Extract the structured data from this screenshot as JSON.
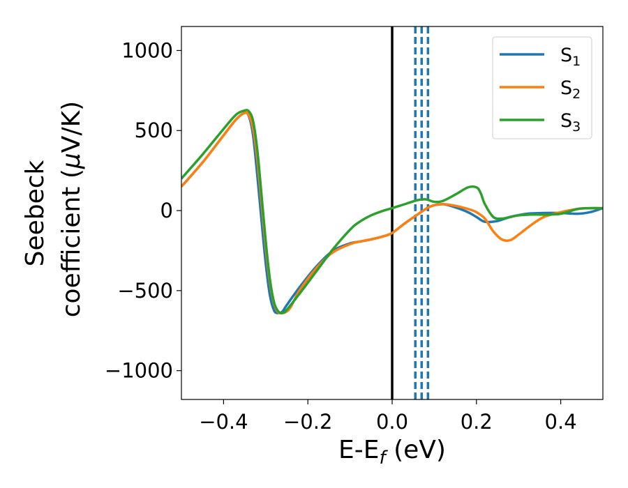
{
  "chart_data": {
    "type": "line",
    "title": "",
    "xlabel": "E-E",
    "xlabel_sub": "f",
    "xlabel_unit": " (eV)",
    "ylabel_line1": "Seebeck",
    "ylabel_line2": "coefficient  (",
    "ylabel_mu": "μ",
    "ylabel_unit": "V/K)",
    "xlim": [
      -0.5,
      0.5
    ],
    "ylim": [
      -1180,
      1150
    ],
    "xticks": [
      -0.4,
      -0.2,
      0.0,
      0.2,
      0.4
    ],
    "xtick_labels": [
      "−0.4",
      "−0.2",
      "0.0",
      "0.2",
      "0.4"
    ],
    "yticks": [
      -1000,
      -500,
      0,
      500,
      1000
    ],
    "ytick_labels": [
      "−1000",
      "−500",
      "0",
      "500",
      "1000"
    ],
    "grid": false,
    "legend_position": "top-right",
    "vertical_lines": [
      {
        "x": 0.0,
        "style": "solid",
        "color": "#000000"
      },
      {
        "x": 0.055,
        "style": "dashed",
        "color": "#1f77b4"
      },
      {
        "x": 0.07,
        "style": "dashed",
        "color": "#1f77b4"
      },
      {
        "x": 0.085,
        "style": "dashed",
        "color": "#1f77b4"
      }
    ],
    "series": [
      {
        "name": "S",
        "sub": "1",
        "color": "#1f77b4",
        "x": [
          -0.5,
          -0.45,
          -0.4,
          -0.37,
          -0.35,
          -0.34,
          -0.33,
          -0.32,
          -0.31,
          -0.3,
          -0.29,
          -0.28,
          -0.27,
          -0.26,
          -0.25,
          -0.22,
          -0.18,
          -0.14,
          -0.1,
          -0.08,
          -0.05,
          -0.02,
          0.0,
          0.03,
          0.06,
          0.09,
          0.12,
          0.15,
          0.18,
          0.2,
          0.22,
          0.25,
          0.28,
          0.32,
          0.36,
          0.4,
          0.44,
          0.47,
          0.5
        ],
        "y": [
          150,
          300,
          470,
          570,
          610,
          590,
          470,
          220,
          -60,
          -330,
          -530,
          -625,
          -640,
          -630,
          -590,
          -480,
          -350,
          -250,
          -205,
          -195,
          -180,
          -160,
          -140,
          -80,
          -25,
          25,
          40,
          20,
          -10,
          -40,
          -70,
          -65,
          -40,
          -20,
          -15,
          -15,
          -20,
          -10,
          15
        ]
      },
      {
        "name": "S",
        "sub": "2",
        "color": "#ff7f0e",
        "x": [
          -0.5,
          -0.45,
          -0.4,
          -0.37,
          -0.35,
          -0.34,
          -0.33,
          -0.32,
          -0.31,
          -0.3,
          -0.29,
          -0.28,
          -0.27,
          -0.26,
          -0.25,
          -0.24,
          -0.22,
          -0.18,
          -0.14,
          -0.1,
          -0.08,
          -0.05,
          -0.02,
          0.0,
          0.03,
          0.06,
          0.09,
          0.12,
          0.15,
          0.18,
          0.2,
          0.22,
          0.24,
          0.26,
          0.28,
          0.3,
          0.33,
          0.36,
          0.4,
          0.44,
          0.47,
          0.5
        ],
        "y": [
          150,
          300,
          470,
          570,
          610,
          595,
          510,
          320,
          50,
          -230,
          -450,
          -585,
          -635,
          -640,
          -630,
          -600,
          -500,
          -360,
          -260,
          -210,
          -195,
          -180,
          -160,
          -140,
          -80,
          -25,
          25,
          40,
          30,
          10,
          -10,
          -50,
          -130,
          -180,
          -185,
          -150,
          -90,
          -40,
          -10,
          10,
          15,
          15
        ]
      },
      {
        "name": "S",
        "sub": "3",
        "color": "#2ca02c",
        "x": [
          -0.5,
          -0.45,
          -0.4,
          -0.37,
          -0.35,
          -0.34,
          -0.33,
          -0.32,
          -0.31,
          -0.3,
          -0.29,
          -0.28,
          -0.27,
          -0.26,
          -0.25,
          -0.22,
          -0.18,
          -0.14,
          -0.1,
          -0.08,
          -0.05,
          -0.02,
          0.0,
          0.03,
          0.06,
          0.08,
          0.1,
          0.12,
          0.15,
          0.18,
          0.2,
          0.21,
          0.22,
          0.24,
          0.26,
          0.28,
          0.3,
          0.33,
          0.36,
          0.4,
          0.44,
          0.47,
          0.5
        ],
        "y": [
          200,
          350,
          510,
          600,
          625,
          620,
          560,
          380,
          100,
          -190,
          -430,
          -575,
          -630,
          -640,
          -620,
          -520,
          -380,
          -240,
          -120,
          -75,
          -30,
          0,
          15,
          40,
          65,
          70,
          55,
          60,
          100,
          145,
          145,
          110,
          40,
          -40,
          -50,
          -40,
          -30,
          -25,
          -25,
          -20,
          10,
          15,
          15
        ]
      }
    ]
  }
}
